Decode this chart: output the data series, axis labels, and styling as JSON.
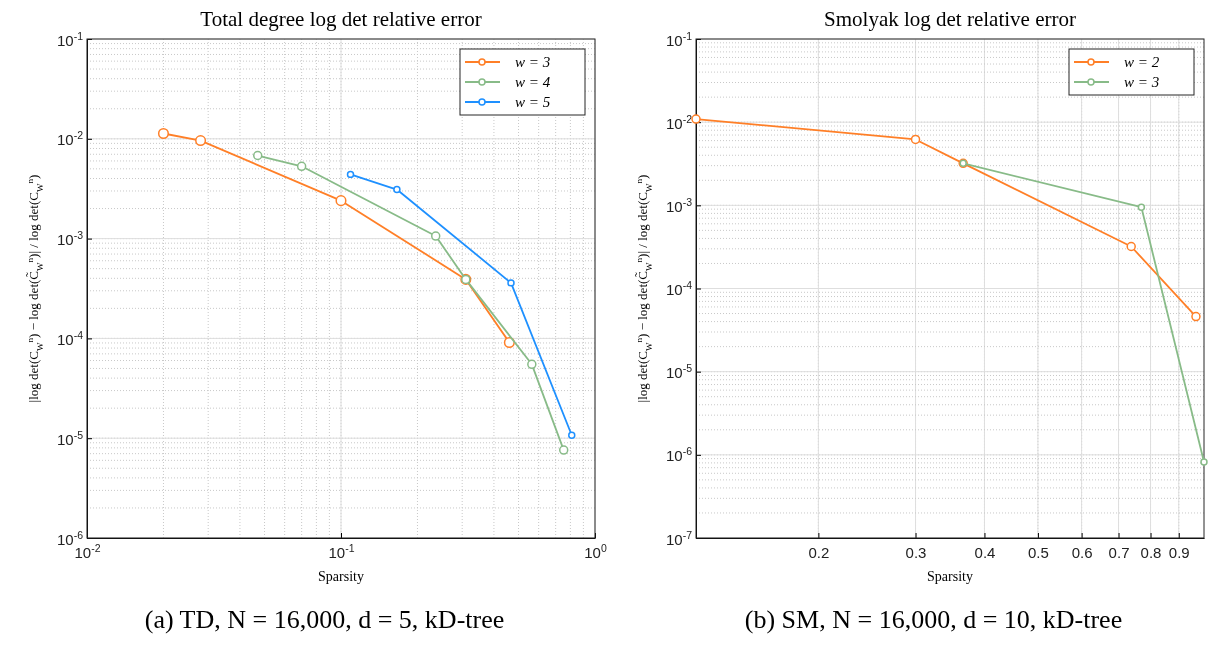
{
  "chart_data": [
    {
      "type": "line",
      "title": "Total degree log det relative error",
      "xlabel": "Sparsity",
      "ylabel": "|log det(C$_{W}$$^{n}$) − log det(C̃$_{W}$$^{n}$)| / log det(C$_{W}$$^{n}$)",
      "annotations": [
        "(a) TD, N = 16,000, d = 5, kD-tree"
      ],
      "log": "xy",
      "grid": true,
      "legend": "top right",
      "marker": "circle",
      "xlim": [
        0.01,
        1
      ],
      "xticks": [
        {
          "value": 0.01,
          "label": "10$^{-2}$"
        },
        {
          "value": 0.1,
          "label": "10$^{-1}$"
        },
        {
          "value": 1,
          "label": "10$^{0}$"
        }
      ],
      "ylim": [
        1e-06,
        0.1
      ],
      "yticks": [
        {
          "value": 1e-06,
          "label": "10$^{-6}$"
        },
        {
          "value": 1e-05,
          "label": "10$^{-5}$"
        },
        {
          "value": 0.0001,
          "label": "10$^{-4}$"
        },
        {
          "value": 0.001,
          "label": "10$^{-3}$"
        },
        {
          "value": 0.01,
          "label": "10$^{-2}$"
        },
        {
          "value": 0.1,
          "label": "10$^{-1}$"
        }
      ],
      "series": [
        {
          "name": "w = 3",
          "color": "#ff7f27",
          "x": [
            0.02,
            0.028,
            0.1,
            0.31,
            0.46
          ],
          "values": [
            0.0113,
            0.0096,
            0.0024,
            0.00039,
            9.1e-05
          ]
        },
        {
          "name": "w = 4",
          "color": "#88bb88",
          "x": [
            0.047,
            0.07,
            0.236,
            0.31,
            0.564,
            0.753
          ],
          "values": [
            0.0068,
            0.0053,
            0.00106,
            0.00039,
            5.5e-05,
            7.6e-06
          ]
        },
        {
          "name": "w = 5",
          "color": "#1e90ff",
          "x": [
            0.109,
            0.166,
            0.467,
            0.81
          ],
          "values": [
            0.0044,
            0.0031,
            0.00036,
            1.07e-05
          ]
        }
      ]
    },
    {
      "type": "line",
      "title": "Smolyak log det relative error",
      "xlabel": "Sparsity",
      "ylabel": "|log det(C$_{W}$$^{n}$) − log det(C̃$_{W}$$^{n}$)| / log det(C$_{W}$$^{n}$)",
      "annotations": [
        "(b) SM, N = 16,000, d = 10, kD-tree"
      ],
      "log": "xy",
      "grid": true,
      "legend": "top right",
      "marker": "circle",
      "xlim": [
        0.12,
        1
      ],
      "xticks": [
        0.2,
        0.3,
        0.4,
        0.5,
        0.6,
        0.7,
        0.8,
        0.9
      ],
      "ylim": [
        1e-07,
        0.1
      ],
      "yticks": [
        {
          "value": 1e-07,
          "label": "10$^{-7}$"
        },
        {
          "value": 1e-06,
          "label": "10$^{-6}$"
        },
        {
          "value": 1e-05,
          "label": "10$^{-5}$"
        },
        {
          "value": 0.0001,
          "label": "10$^{-4}$"
        },
        {
          "value": 0.001,
          "label": "10$^{-3}$"
        },
        {
          "value": 0.01,
          "label": "10$^{-2}$"
        },
        {
          "value": 0.1,
          "label": "10$^{-1}$"
        }
      ],
      "series": [
        {
          "name": "w = 2",
          "color": "#ff7f27",
          "x": [
            0.12,
            0.3,
            0.366,
            0.738,
            0.967
          ],
          "values": [
            0.0109,
            0.0062,
            0.0032,
            0.00032,
            4.6e-05
          ]
        },
        {
          "name": "w = 3",
          "color": "#88bb88",
          "x": [
            0.366,
            0.77,
            1.0
          ],
          "values": [
            0.0032,
            0.00095,
            8.2e-07
          ]
        }
      ]
    }
  ]
}
